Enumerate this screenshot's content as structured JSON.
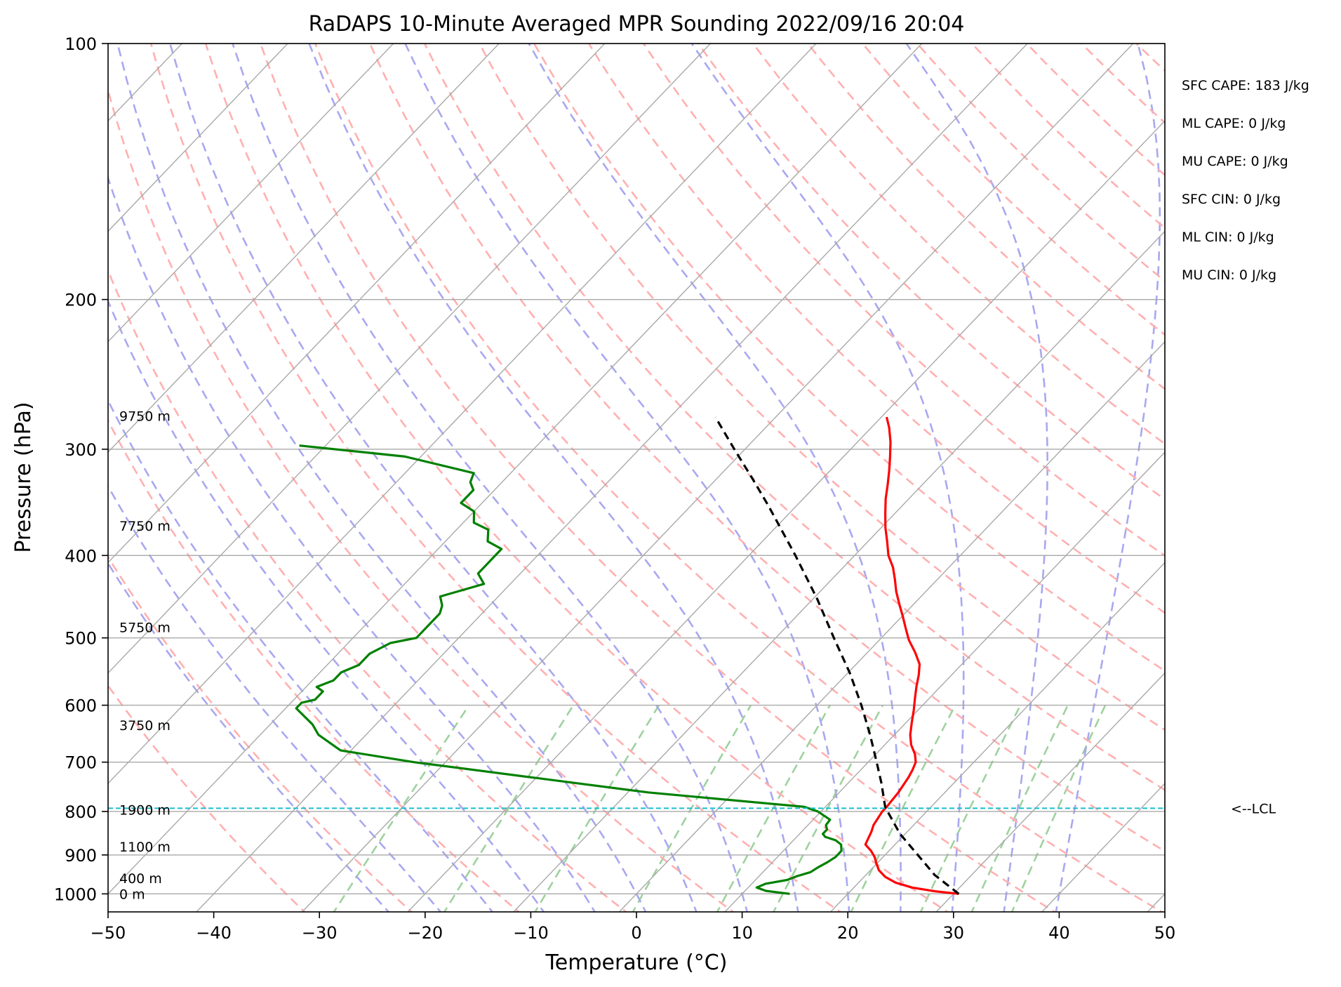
{
  "chart_data": {
    "type": "line",
    "title": "RaDAPS 10-Minute Averaged MPR Sounding 2022/09/16 20:04",
    "xlabel": "Temperature (°C)",
    "ylabel": "Pressure (hPa)",
    "x_scale": "skew-t",
    "y_scale": "log",
    "xlim": [
      -50,
      50
    ],
    "ylim": [
      1050,
      100
    ],
    "x_ticks": [
      -50,
      -40,
      -30,
      -20,
      -10,
      0,
      10,
      20,
      30,
      40,
      50
    ],
    "x_tick_labels": [
      "−50",
      "−40",
      "−30",
      "−20",
      "−10",
      "0",
      "10",
      "20",
      "30",
      "40",
      "50"
    ],
    "y_ticks": [
      1000,
      900,
      800,
      700,
      600,
      500,
      400,
      300,
      200,
      100
    ],
    "y_tick_labels": [
      "1000",
      "900",
      "800",
      "700",
      "600",
      "500",
      "400",
      "300",
      "200",
      "100"
    ],
    "grid": true,
    "skew_deg_per_decade": 77,
    "colors": {
      "temperature": "#ff0000",
      "dewpoint": "#008000",
      "parcel": "#000000",
      "lcl_line": "#17becf",
      "isotherm": "#a9a9a9",
      "dry_adiabat": "#ffb0b0",
      "moist_adiabat": "#a8a8f0",
      "mixing_ratio": "#9ed29e"
    },
    "series": [
      {
        "style": "solid",
        "color": "#ff0000",
        "points": [
          [
            30.5,
            1000
          ],
          [
            28,
            993
          ],
          [
            25.5,
            983
          ],
          [
            23.5,
            970
          ],
          [
            22,
            955
          ],
          [
            20.8,
            938
          ],
          [
            20,
            922
          ],
          [
            19.2,
            905
          ],
          [
            18.3,
            890
          ],
          [
            17.2,
            875
          ],
          [
            16.9,
            860
          ],
          [
            16.6,
            845
          ],
          [
            16.2,
            830
          ],
          [
            16.0,
            815
          ],
          [
            15.8,
            800
          ],
          [
            15.8,
            790
          ],
          [
            15.7,
            775
          ],
          [
            15.6,
            760
          ],
          [
            15.4,
            745
          ],
          [
            15.2,
            730
          ],
          [
            14.9,
            715
          ],
          [
            14.5,
            700
          ],
          [
            13.7,
            685
          ],
          [
            12.5,
            668
          ],
          [
            11.5,
            650
          ],
          [
            10.5,
            628
          ],
          [
            9.6,
            608
          ],
          [
            8.6,
            588
          ],
          [
            7.7,
            570
          ],
          [
            6.9,
            553
          ],
          [
            6.0,
            537
          ],
          [
            4.5,
            520
          ],
          [
            2.8,
            503
          ],
          [
            1.5,
            488
          ],
          [
            0.1,
            472
          ],
          [
            -1.3,
            457
          ],
          [
            -2.8,
            441
          ],
          [
            -4.0,
            427
          ],
          [
            -5.3,
            413
          ],
          [
            -6.8,
            400
          ],
          [
            -8.2,
            385
          ],
          [
            -9.6,
            371
          ],
          [
            -10.9,
            357
          ],
          [
            -12.2,
            343
          ],
          [
            -13.3,
            330
          ],
          [
            -14.4,
            318
          ],
          [
            -15.6,
            306
          ],
          [
            -16.9,
            294
          ],
          [
            -18.3,
            283
          ],
          [
            -19.5,
            275
          ]
        ]
      },
      {
        "style": "solid",
        "color": "#008000",
        "points": [
          [
            14.5,
            1000
          ],
          [
            12,
            992
          ],
          [
            10.8,
            983
          ],
          [
            11.3,
            973
          ],
          [
            13.0,
            963
          ],
          [
            13.6,
            953
          ],
          [
            14.5,
            943
          ],
          [
            14.8,
            930
          ],
          [
            15.2,
            918
          ],
          [
            15.5,
            905
          ],
          [
            15.5,
            890
          ],
          [
            14.9,
            875
          ],
          [
            14.0,
            865
          ],
          [
            12.7,
            857
          ],
          [
            12.2,
            850
          ],
          [
            12.2,
            840
          ],
          [
            11.7,
            830
          ],
          [
            11.6,
            818
          ],
          [
            9.7,
            800
          ],
          [
            8.0,
            790
          ],
          [
            -8.0,
            760
          ],
          [
            -33.0,
            700
          ],
          [
            -41.0,
            678
          ],
          [
            -44.5,
            650
          ],
          [
            -46.0,
            632
          ],
          [
            -49.0,
            605
          ],
          [
            -49.0,
            596
          ],
          [
            -48.0,
            591
          ],
          [
            -48.0,
            578
          ],
          [
            -49.0,
            571
          ],
          [
            -48.0,
            561
          ],
          [
            -48.0,
            549
          ],
          [
            -47.0,
            538
          ],
          [
            -47.0,
            522
          ],
          [
            -46.0,
            507
          ],
          [
            -44.0,
            500
          ],
          [
            -44.0,
            482
          ],
          [
            -44.0,
            468
          ],
          [
            -44.5,
            458
          ],
          [
            -45.5,
            447
          ],
          [
            -42.5,
            432
          ],
          [
            -44.0,
            420
          ],
          [
            -44.0,
            408
          ],
          [
            -44.0,
            400
          ],
          [
            -44.0,
            393
          ],
          [
            -46.0,
            385
          ],
          [
            -47.0,
            373
          ],
          [
            -49.0,
            366
          ],
          [
            -50.0,
            355
          ],
          [
            -52.0,
            347
          ],
          [
            -52.0,
            335
          ],
          [
            -53.0,
            328
          ],
          [
            -53.5,
            320
          ],
          [
            -61.5,
            306
          ],
          [
            -72.5,
            297
          ]
        ]
      },
      {
        "style": "dashed",
        "color": "#000000",
        "points": [
          [
            30.5,
            1000
          ],
          [
            26.5,
            950
          ],
          [
            23.1,
            900
          ],
          [
            19.5,
            850
          ],
          [
            16.3,
            800
          ],
          [
            15.8,
            793
          ],
          [
            13.1,
            740
          ],
          [
            10.8,
            700
          ],
          [
            7.7,
            650
          ],
          [
            4.2,
            600
          ],
          [
            0.2,
            550
          ],
          [
            -4.5,
            500
          ],
          [
            -9.6,
            450
          ],
          [
            -15.6,
            400
          ],
          [
            -22.6,
            350
          ],
          [
            -26.6,
            325
          ],
          [
            -31.0,
            300
          ],
          [
            -35.7,
            275
          ]
        ]
      }
    ],
    "lcl": {
      "pressure": 793,
      "label": "<--LCL"
    },
    "height_labels": [
      {
        "text": "9750 m",
        "pressure": 274
      },
      {
        "text": "7750 m",
        "pressure": 369
      },
      {
        "text": "5750 m",
        "pressure": 486
      },
      {
        "text": "3750 m",
        "pressure": 633
      },
      {
        "text": "1900 m",
        "pressure": 796
      },
      {
        "text": "1100 m",
        "pressure": 880
      },
      {
        "text": "400 m",
        "pressure": 958
      },
      {
        "text": "0 m",
        "pressure": 1000
      }
    ],
    "stats": [
      "SFC CAPE: 183 J/kg",
      "ML CAPE: 0 J/kg",
      "MU CAPE: 0 J/kg",
      "SFC CIN: 0 J/kg",
      "ML CIN: 0 J/kg",
      "MU CIN: 0 J/kg"
    ],
    "background_lines": {
      "isotherms_temp_c": [
        -160,
        -150,
        -140,
        -130,
        -120,
        -110,
        -100,
        -90,
        -80,
        -70,
        -60,
        -50,
        -40,
        -30,
        -20,
        -10,
        0,
        10,
        20,
        30,
        40,
        50
      ],
      "dry_adiabats_theta_k": [
        240,
        250,
        260,
        270,
        280,
        290,
        300,
        310,
        320,
        330,
        340,
        350,
        360,
        370,
        380,
        390,
        400,
        410,
        420,
        430,
        440,
        450,
        460,
        470,
        480
      ],
      "moist_adiabats_temp_c": [
        -25,
        -20,
        -15,
        -10,
        -5,
        0,
        5,
        10,
        15,
        20,
        25,
        30,
        35,
        40
      ],
      "mixing_ratios_gkg": [
        0.4,
        1,
        2,
        4,
        7,
        10,
        16,
        24,
        32,
        40
      ]
    }
  }
}
